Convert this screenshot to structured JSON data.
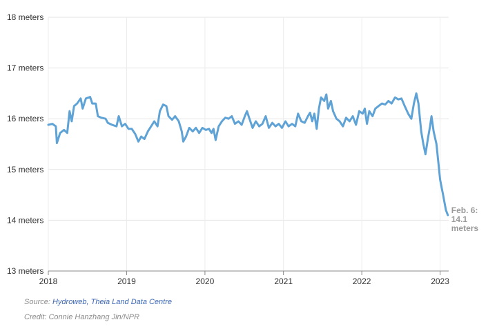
{
  "chart_data": {
    "type": "line",
    "ylim": [
      13,
      18
    ],
    "xlim": [
      "2018-01-01",
      "2023-02-10"
    ],
    "yticks": [
      {
        "value": 13,
        "label": "13 meters"
      },
      {
        "value": 14,
        "label": "14 meters"
      },
      {
        "value": 15,
        "label": "15 meters"
      },
      {
        "value": 16,
        "label": "16 meters"
      },
      {
        "value": 17,
        "label": "17 meters"
      },
      {
        "value": 18,
        "label": "18 meters"
      }
    ],
    "xticks": [
      {
        "value": "2018-01-01",
        "label": "2018"
      },
      {
        "value": "2019-01-01",
        "label": "2019"
      },
      {
        "value": "2020-01-01",
        "label": "2020"
      },
      {
        "value": "2021-01-01",
        "label": "2021"
      },
      {
        "value": "2022-01-01",
        "label": "2022"
      },
      {
        "value": "2023-01-01",
        "label": "2023"
      }
    ],
    "grid": true,
    "line_color": "#5fa3d6",
    "end_annotation": [
      "Feb. 6:",
      "14.1",
      "meters"
    ],
    "series": [
      {
        "points": [
          [
            "2018-01-01",
            15.88
          ],
          [
            "2018-01-20",
            15.9
          ],
          [
            "2018-02-05",
            15.85
          ],
          [
            "2018-02-10",
            15.52
          ],
          [
            "2018-02-25",
            15.72
          ],
          [
            "2018-03-15",
            15.78
          ],
          [
            "2018-03-30",
            15.72
          ],
          [
            "2018-04-10",
            16.15
          ],
          [
            "2018-04-20",
            15.95
          ],
          [
            "2018-05-01",
            16.25
          ],
          [
            "2018-05-15",
            16.3
          ],
          [
            "2018-06-01",
            16.4
          ],
          [
            "2018-06-10",
            16.2
          ],
          [
            "2018-06-25",
            16.4
          ],
          [
            "2018-07-15",
            16.43
          ],
          [
            "2018-07-25",
            16.3
          ],
          [
            "2018-08-10",
            16.3
          ],
          [
            "2018-08-20",
            16.05
          ],
          [
            "2018-09-05",
            16.02
          ],
          [
            "2018-09-25",
            16.0
          ],
          [
            "2018-10-05",
            15.92
          ],
          [
            "2018-10-25",
            15.88
          ],
          [
            "2018-11-15",
            15.85
          ],
          [
            "2018-11-25",
            16.05
          ],
          [
            "2018-12-10",
            15.85
          ],
          [
            "2018-12-25",
            15.9
          ],
          [
            "2019-01-10",
            15.8
          ],
          [
            "2019-01-25",
            15.8
          ],
          [
            "2019-02-10",
            15.7
          ],
          [
            "2019-02-25",
            15.55
          ],
          [
            "2019-03-10",
            15.65
          ],
          [
            "2019-03-25",
            15.6
          ],
          [
            "2019-04-10",
            15.75
          ],
          [
            "2019-04-25",
            15.85
          ],
          [
            "2019-05-10",
            15.95
          ],
          [
            "2019-05-25",
            15.85
          ],
          [
            "2019-06-05",
            16.15
          ],
          [
            "2019-06-20",
            16.28
          ],
          [
            "2019-07-05",
            16.25
          ],
          [
            "2019-07-15",
            16.05
          ],
          [
            "2019-08-01",
            15.98
          ],
          [
            "2019-08-15",
            16.05
          ],
          [
            "2019-09-01",
            15.95
          ],
          [
            "2019-09-15",
            15.75
          ],
          [
            "2019-09-22",
            15.55
          ],
          [
            "2019-10-05",
            15.65
          ],
          [
            "2019-10-20",
            15.82
          ],
          [
            "2019-11-05",
            15.75
          ],
          [
            "2019-11-20",
            15.82
          ],
          [
            "2019-12-05",
            15.72
          ],
          [
            "2019-12-20",
            15.82
          ],
          [
            "2020-01-05",
            15.78
          ],
          [
            "2020-01-20",
            15.8
          ],
          [
            "2020-02-01",
            15.72
          ],
          [
            "2020-02-10",
            15.8
          ],
          [
            "2020-02-20",
            15.58
          ],
          [
            "2020-03-05",
            15.85
          ],
          [
            "2020-03-20",
            15.95
          ],
          [
            "2020-04-05",
            16.02
          ],
          [
            "2020-04-20",
            16.0
          ],
          [
            "2020-05-05",
            16.05
          ],
          [
            "2020-05-20",
            15.9
          ],
          [
            "2020-06-05",
            15.95
          ],
          [
            "2020-06-20",
            15.88
          ],
          [
            "2020-07-05",
            16.05
          ],
          [
            "2020-07-15",
            16.15
          ],
          [
            "2020-07-25",
            16.02
          ],
          [
            "2020-08-10",
            15.82
          ],
          [
            "2020-08-25",
            15.95
          ],
          [
            "2020-09-10",
            15.85
          ],
          [
            "2020-09-25",
            15.9
          ],
          [
            "2020-10-10",
            16.05
          ],
          [
            "2020-10-25",
            15.82
          ],
          [
            "2020-11-10",
            15.92
          ],
          [
            "2020-11-25",
            15.85
          ],
          [
            "2020-12-10",
            15.9
          ],
          [
            "2020-12-25",
            15.82
          ],
          [
            "2021-01-10",
            15.95
          ],
          [
            "2021-01-25",
            15.85
          ],
          [
            "2021-02-10",
            15.9
          ],
          [
            "2021-02-25",
            15.85
          ],
          [
            "2021-03-10",
            16.1
          ],
          [
            "2021-03-25",
            15.95
          ],
          [
            "2021-04-10",
            15.92
          ],
          [
            "2021-04-25",
            16.05
          ],
          [
            "2021-05-05",
            16.12
          ],
          [
            "2021-05-15",
            15.95
          ],
          [
            "2021-05-25",
            16.1
          ],
          [
            "2021-06-05",
            15.8
          ],
          [
            "2021-06-15",
            16.2
          ],
          [
            "2021-06-25",
            16.42
          ],
          [
            "2021-07-10",
            16.35
          ],
          [
            "2021-07-20",
            16.48
          ],
          [
            "2021-07-28",
            16.2
          ],
          [
            "2021-08-10",
            16.35
          ],
          [
            "2021-08-20",
            16.15
          ],
          [
            "2021-09-05",
            16.0
          ],
          [
            "2021-09-20",
            15.95
          ],
          [
            "2021-10-05",
            15.85
          ],
          [
            "2021-10-20",
            16.02
          ],
          [
            "2021-11-05",
            15.95
          ],
          [
            "2021-11-20",
            16.05
          ],
          [
            "2021-12-05",
            15.88
          ],
          [
            "2021-12-20",
            16.15
          ],
          [
            "2022-01-05",
            16.1
          ],
          [
            "2022-01-15",
            16.2
          ],
          [
            "2022-01-25",
            15.9
          ],
          [
            "2022-02-05",
            16.15
          ],
          [
            "2022-02-20",
            16.05
          ],
          [
            "2022-03-05",
            16.2
          ],
          [
            "2022-03-20",
            16.25
          ],
          [
            "2022-04-05",
            16.3
          ],
          [
            "2022-04-20",
            16.28
          ],
          [
            "2022-05-05",
            16.35
          ],
          [
            "2022-05-20",
            16.3
          ],
          [
            "2022-06-05",
            16.42
          ],
          [
            "2022-06-20",
            16.38
          ],
          [
            "2022-07-05",
            16.4
          ],
          [
            "2022-07-20",
            16.25
          ],
          [
            "2022-08-05",
            16.1
          ],
          [
            "2022-08-20",
            16.0
          ],
          [
            "2022-09-01",
            16.3
          ],
          [
            "2022-09-12",
            16.5
          ],
          [
            "2022-09-22",
            16.3
          ],
          [
            "2022-10-05",
            15.75
          ],
          [
            "2022-10-15",
            15.5
          ],
          [
            "2022-10-25",
            15.3
          ],
          [
            "2022-11-05",
            15.6
          ],
          [
            "2022-11-15",
            15.85
          ],
          [
            "2022-11-22",
            16.05
          ],
          [
            "2022-12-02",
            15.75
          ],
          [
            "2022-12-15",
            15.5
          ],
          [
            "2023-01-01",
            14.8
          ],
          [
            "2023-01-15",
            14.5
          ],
          [
            "2023-01-28",
            14.2
          ],
          [
            "2023-02-06",
            14.1
          ]
        ]
      }
    ]
  },
  "footer": {
    "source_prefix": "Source: ",
    "source_link": "Hydroweb, Theia Land Data Centre",
    "credit": "Credit: Connie Hanzhang Jin/NPR"
  }
}
